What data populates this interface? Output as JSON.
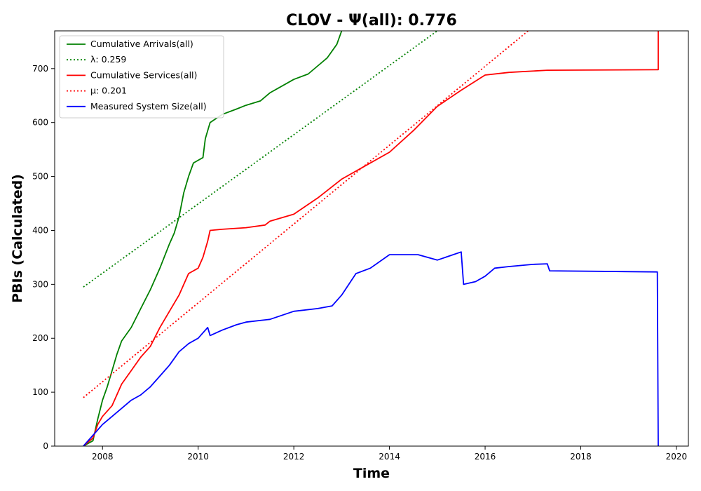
{
  "chart_data": {
    "type": "line",
    "title": "CLOV -  Ψ(all): 0.776",
    "xlabel": "Time",
    "ylabel": "PBIs (Calculated)",
    "xlim": [
      2007.0,
      2020.25
    ],
    "ylim": [
      0,
      770
    ],
    "xticks": [
      2008,
      2010,
      2012,
      2014,
      2016,
      2018,
      2020
    ],
    "yticks": [
      0,
      100,
      200,
      300,
      400,
      500,
      600,
      700
    ],
    "grid": false,
    "legend_position": "top-left",
    "series": [
      {
        "name": "Cumulative Arrivals(all)",
        "color": "#008000",
        "style": "solid",
        "x": [
          2007.6,
          2007.8,
          2007.9,
          2008.0,
          2008.1,
          2008.2,
          2008.3,
          2008.4,
          2008.6,
          2008.8,
          2009.0,
          2009.2,
          2009.4,
          2009.5,
          2009.6,
          2009.7,
          2009.8,
          2009.9,
          2010.0,
          2010.1,
          2010.15,
          2010.25,
          2010.5,
          2010.8,
          2011.0,
          2011.3,
          2011.5,
          2011.7,
          2012.0,
          2012.3,
          2012.5,
          2012.7,
          2012.9,
          2013.0
        ],
        "y": [
          0,
          10,
          50,
          85,
          110,
          140,
          170,
          195,
          220,
          255,
          290,
          330,
          375,
          395,
          425,
          470,
          500,
          525,
          530,
          535,
          570,
          600,
          615,
          625,
          632,
          640,
          655,
          665,
          680,
          690,
          705,
          720,
          745,
          770
        ]
      },
      {
        "name": "λ: 0.259",
        "color": "#008000",
        "style": "dotted",
        "x": [
          2007.6,
          2015.0
        ],
        "y": [
          295,
          770
        ]
      },
      {
        "name": "Cumulative Services(all)",
        "color": "#ff0000",
        "style": "solid",
        "x": [
          2007.6,
          2007.8,
          2007.9,
          2008.0,
          2008.2,
          2008.4,
          2008.6,
          2008.8,
          2009.0,
          2009.2,
          2009.4,
          2009.6,
          2009.7,
          2009.8,
          2010.0,
          2010.1,
          2010.2,
          2010.25,
          2010.5,
          2011.0,
          2011.4,
          2011.5,
          2012.0,
          2012.5,
          2013.0,
          2013.5,
          2014.0,
          2014.5,
          2015.0,
          2015.5,
          2016.0,
          2016.5,
          2017.3,
          2019.6,
          2019.62,
          2019.62
        ],
        "y": [
          0,
          15,
          40,
          55,
          75,
          115,
          140,
          165,
          185,
          220,
          250,
          280,
          300,
          320,
          330,
          350,
          380,
          400,
          402,
          405,
          410,
          417,
          430,
          460,
          495,
          520,
          545,
          585,
          630,
          660,
          688,
          693,
          697,
          698,
          698,
          770
        ]
      },
      {
        "name": "μ: 0.201",
        "color": "#ff0000",
        "style": "dotted",
        "x": [
          2007.6,
          2016.9
        ],
        "y": [
          90,
          770
        ]
      },
      {
        "name": "Measured System Size(all)",
        "color": "#0000ff",
        "style": "solid",
        "x": [
          2007.6,
          2007.8,
          2008.0,
          2008.2,
          2008.4,
          2008.6,
          2008.8,
          2009.0,
          2009.2,
          2009.4,
          2009.6,
          2009.8,
          2010.0,
          2010.2,
          2010.25,
          2010.5,
          2010.8,
          2011.0,
          2011.5,
          2012.0,
          2012.5,
          2012.8,
          2013.0,
          2013.3,
          2013.6,
          2014.0,
          2014.3,
          2014.6,
          2015.0,
          2015.5,
          2015.55,
          2015.8,
          2016.0,
          2016.2,
          2016.5,
          2017.0,
          2017.3,
          2017.35,
          2019.6,
          2019.62
        ],
        "y": [
          0,
          20,
          40,
          55,
          70,
          85,
          95,
          110,
          130,
          150,
          175,
          190,
          200,
          220,
          205,
          215,
          225,
          230,
          235,
          250,
          255,
          260,
          280,
          320,
          330,
          355,
          355,
          355,
          345,
          360,
          300,
          305,
          315,
          330,
          333,
          337,
          338,
          325,
          323,
          0
        ]
      }
    ]
  }
}
